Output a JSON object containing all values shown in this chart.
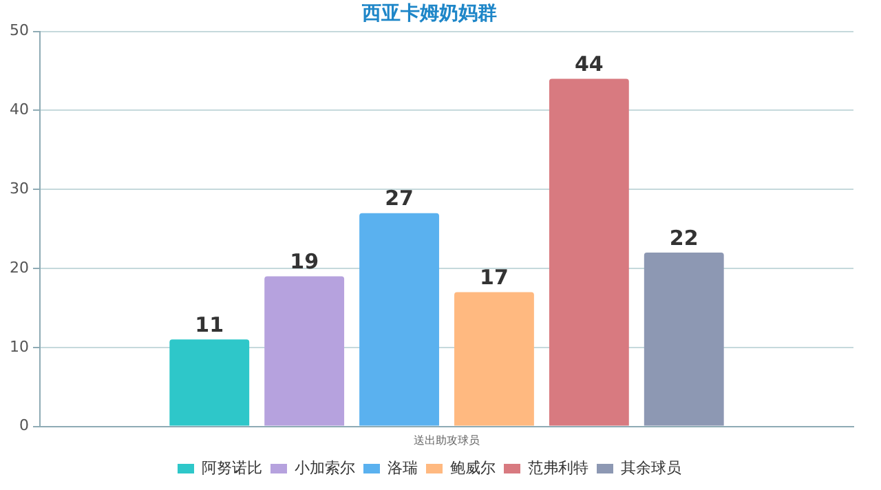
{
  "chart_data": {
    "type": "bar",
    "title": "西亚卡姆奶妈群",
    "xlabel": "送出助攻球员",
    "categories": [
      null
    ],
    "series": [
      {
        "name": "阿努诺比",
        "color": "#2ec7c9",
        "values": [
          11
        ]
      },
      {
        "name": "小加索尔",
        "color": "#b6a2de",
        "values": [
          19
        ]
      },
      {
        "name": "洛瑞",
        "color": "#5ab1ef",
        "values": [
          27
        ]
      },
      {
        "name": "鲍威尔",
        "color": "#ffb980",
        "values": [
          17
        ]
      },
      {
        "name": "范弗利特",
        "color": "#d87a80",
        "values": [
          44
        ]
      },
      {
        "name": "其余球员",
        "color": "#8d98b3",
        "values": [
          22
        ]
      }
    ],
    "ylim": [
      0,
      50
    ],
    "yticks": [
      0,
      10,
      20,
      30,
      40,
      50
    ],
    "grid": "y",
    "legend": "bottom",
    "data_labels": true
  }
}
